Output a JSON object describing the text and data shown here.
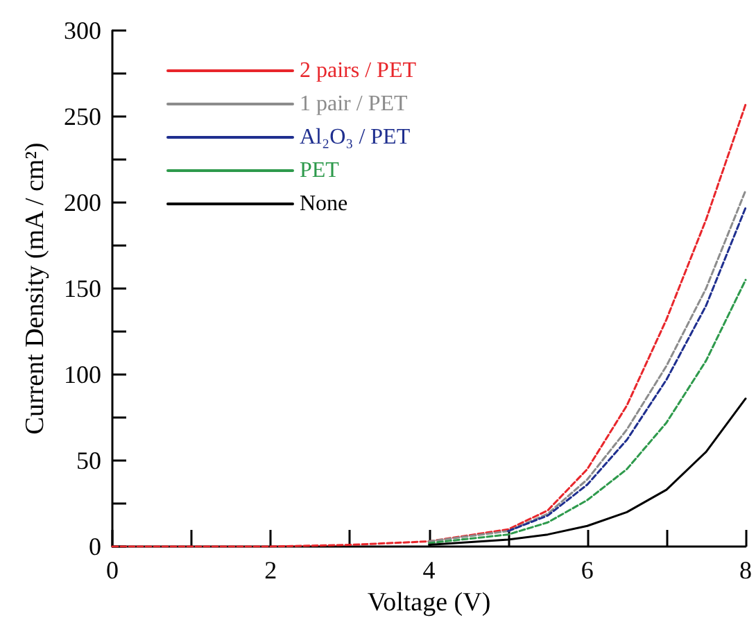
{
  "chart_data": {
    "type": "line",
    "xlabel": "Voltage (V)",
    "ylabel": "Current Density (mA / cm²)",
    "x": [
      4,
      5,
      5.5,
      6,
      6.5,
      7,
      7.5,
      8
    ],
    "series": [
      {
        "name": "2 pairs / PET",
        "color": "#e8262b",
        "line_style": "dashed",
        "x": [
          0,
          2,
          3,
          4,
          5,
          5.5,
          6,
          6.5,
          7,
          7.5,
          8
        ],
        "values": [
          0,
          0,
          1,
          3,
          10,
          21,
          45,
          82,
          132,
          190,
          257
        ]
      },
      {
        "name": "1 pair / PET",
        "color": "#8c8c8c",
        "line_style": "dashed",
        "values": [
          3,
          9,
          19,
          39,
          68,
          105,
          150,
          207
        ]
      },
      {
        "name": "Al₂O₃ / PET",
        "color": "#1f2f8f",
        "line_style": "dashed",
        "x": [
          5,
          5.5,
          6,
          6.5,
          7,
          7.5,
          8
        ],
        "values": [
          9,
          18,
          36,
          62,
          97,
          140,
          197
        ]
      },
      {
        "name": "PET",
        "color": "#2e9a4c",
        "line_style": "dashed",
        "values": [
          2,
          7,
          14,
          27,
          45,
          72,
          108,
          155
        ]
      },
      {
        "name": "None",
        "color": "#000000",
        "line_style": "solid",
        "values": [
          1,
          4,
          7,
          12,
          20,
          33,
          55,
          86
        ]
      }
    ],
    "xlim": [
      0,
      8
    ],
    "xticks": [
      0,
      {
        "value": 1,
        "label": null
      },
      2,
      {
        "value": 3,
        "label": null
      },
      4,
      {
        "value": 5,
        "label": null
      },
      6,
      {
        "value": 7,
        "label": null
      },
      8
    ],
    "ylim": [
      0,
      300
    ],
    "yticks": [
      0,
      {
        "value": 25,
        "label": null
      },
      50,
      {
        "value": 75,
        "label": null
      },
      100,
      {
        "value": 125,
        "label": null
      },
      150,
      {
        "value": 175,
        "label": null
      },
      200,
      {
        "value": 225,
        "label": null
      },
      250,
      {
        "value": 275,
        "label": null
      },
      300
    ],
    "grid": false,
    "legend": "top left",
    "marker": "none"
  }
}
